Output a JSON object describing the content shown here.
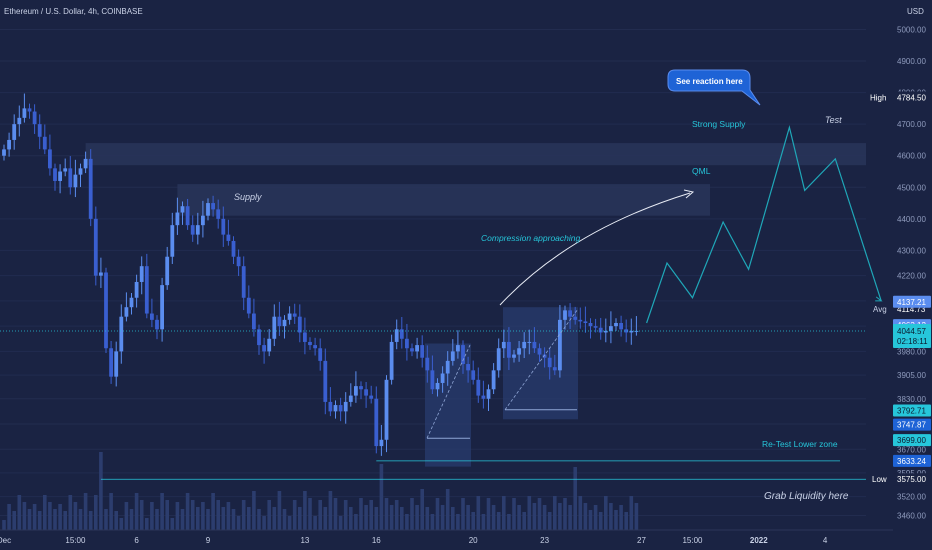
{
  "header": {
    "symbol": "Ethereum / U.S. Dollar, 4h, COINBASE",
    "currency": "USD"
  },
  "colors": {
    "background": "#1a2343",
    "candle": "#5b8def",
    "candle_dark": "#3a5fd0",
    "zone": "#283459",
    "projection": "#1fa7b8",
    "label_bg": "#1e63d6",
    "text": "#c9d1e6",
    "teal_text": "#26c6da"
  },
  "annotations": {
    "supply": "Supply",
    "strong_supply": "Strong Supply",
    "qml": "QML",
    "compression": "Compression approaching",
    "reaction": "See reaction here",
    "test": "Test",
    "retest": "Re-Test Lower zone",
    "grab": "Grab Liquidity here"
  },
  "chart_data": {
    "type": "candlestick",
    "title": "Ethereum / U.S. Dollar, 4h, COINBASE",
    "y_unit": "USD",
    "ylim": [
      3430,
      5030
    ],
    "y_ticks": [
      5000,
      4900,
      4800,
      4700,
      4600,
      4500,
      4400,
      4300,
      4220,
      4140,
      4060,
      3980,
      3905,
      3830,
      3750,
      3670,
      3595,
      3520,
      3460
    ],
    "x_ticks": [
      {
        "label": "Dec",
        "i": 0
      },
      {
        "label": "15:00",
        "i": 14
      },
      {
        "label": "6",
        "i": 26
      },
      {
        "label": "9",
        "i": 40
      },
      {
        "label": "13",
        "i": 59
      },
      {
        "label": "16",
        "i": 73
      },
      {
        "label": "20",
        "i": 92
      },
      {
        "label": "23",
        "i": 106
      },
      {
        "label": "27",
        "i": 125
      },
      {
        "label": "15:00",
        "i": 135
      },
      {
        "label": "2022",
        "i": 148
      },
      {
        "label": "4",
        "i": 161
      }
    ],
    "closes": [
      4620,
      4650,
      4700,
      4720,
      4750,
      4740,
      4700,
      4660,
      4620,
      4560,
      4520,
      4550,
      4560,
      4500,
      4540,
      4560,
      4590,
      4400,
      4220,
      4230,
      3990,
      3900,
      3980,
      4090,
      4120,
      4150,
      4200,
      4250,
      4100,
      4080,
      4050,
      4190,
      4280,
      4380,
      4420,
      4440,
      4380,
      4350,
      4380,
      4410,
      4450,
      4430,
      4400,
      4350,
      4330,
      4280,
      4250,
      4150,
      4100,
      4050,
      4000,
      3980,
      4020,
      4090,
      4060,
      4080,
      4100,
      4090,
      4040,
      4010,
      4000,
      3990,
      3950,
      3820,
      3790,
      3810,
      3790,
      3820,
      3840,
      3870,
      3860,
      3840,
      3830,
      3680,
      3700,
      3890,
      4010,
      4050,
      4020,
      3990,
      3980,
      4000,
      3960,
      3920,
      3860,
      3880,
      3910,
      3950,
      3980,
      4000,
      3940,
      3920,
      3890,
      3840,
      3830,
      3860,
      3920,
      3990,
      4010,
      3960,
      3970,
      3990,
      4010,
      4010,
      3990,
      3970,
      3960,
      3930,
      3920,
      4080,
      4110,
      4090,
      4080,
      4075,
      4070,
      4060,
      4055,
      4040,
      4045,
      4060,
      4070,
      4050,
      4040,
      4045,
      4045
    ],
    "series": [
      {
        "name": "Projection",
        "points": [
          [
            126,
            4070
          ],
          [
            130,
            4260
          ],
          [
            135,
            4150
          ],
          [
            141,
            4390
          ],
          [
            146,
            4240
          ],
          [
            154,
            4690
          ],
          [
            157,
            4490
          ],
          [
            163,
            4590
          ],
          [
            172,
            4140
          ]
        ]
      }
    ],
    "levels": {
      "high": {
        "label": "High",
        "value": 4784.5
      },
      "low": {
        "label": "Low",
        "value": 3575.0
      },
      "avg": {
        "label": "Avg",
        "value": 4114.73
      },
      "current": {
        "value": 4044.57,
        "countdown": "02:18:11"
      },
      "price_tags": [
        4137.21,
        4063.12,
        3792.71,
        3747.87,
        3699.0,
        3633.24
      ]
    },
    "zones": [
      {
        "name": "Strong Supply",
        "from": 4640,
        "to": 4570
      },
      {
        "name": "QML",
        "from": 4510,
        "to": 4410
      }
    ]
  }
}
